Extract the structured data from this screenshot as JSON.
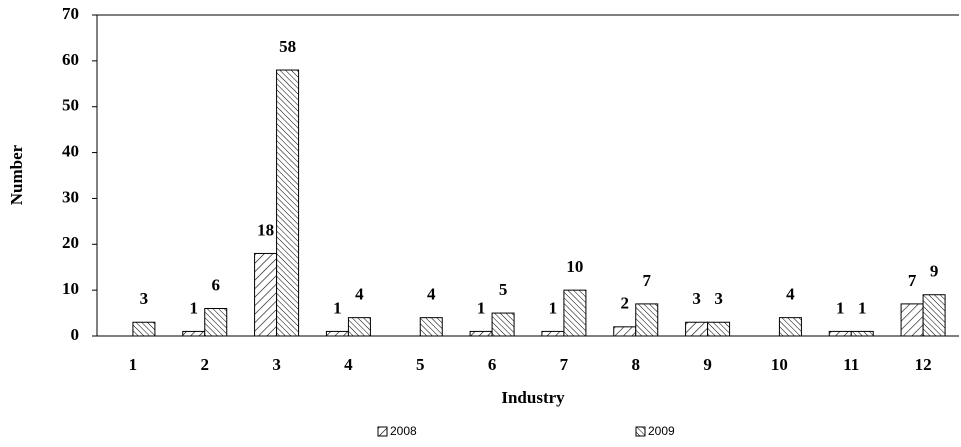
{
  "chart_data": {
    "type": "bar",
    "x_label": "Industry",
    "y_label": "Number",
    "categories": [
      "1",
      "2",
      "3",
      "4",
      "5",
      "6",
      "7",
      "8",
      "9",
      "10",
      "11",
      "12"
    ],
    "series": [
      {
        "name": "2008",
        "color": "#000000",
        "hatch": "forward",
        "values": [
          null,
          1,
          18,
          1,
          null,
          1,
          1,
          2,
          3,
          null,
          1,
          7
        ]
      },
      {
        "name": "2009",
        "color": "#000000",
        "hatch": "backward",
        "values": [
          3,
          6,
          58,
          4,
          4,
          5,
          10,
          7,
          3,
          4,
          1,
          9
        ]
      }
    ],
    "ylim": [
      0,
      70
    ],
    "yticks": [
      0,
      10,
      20,
      30,
      40,
      50,
      60,
      70
    ],
    "grid": false,
    "legend": "bottom"
  }
}
